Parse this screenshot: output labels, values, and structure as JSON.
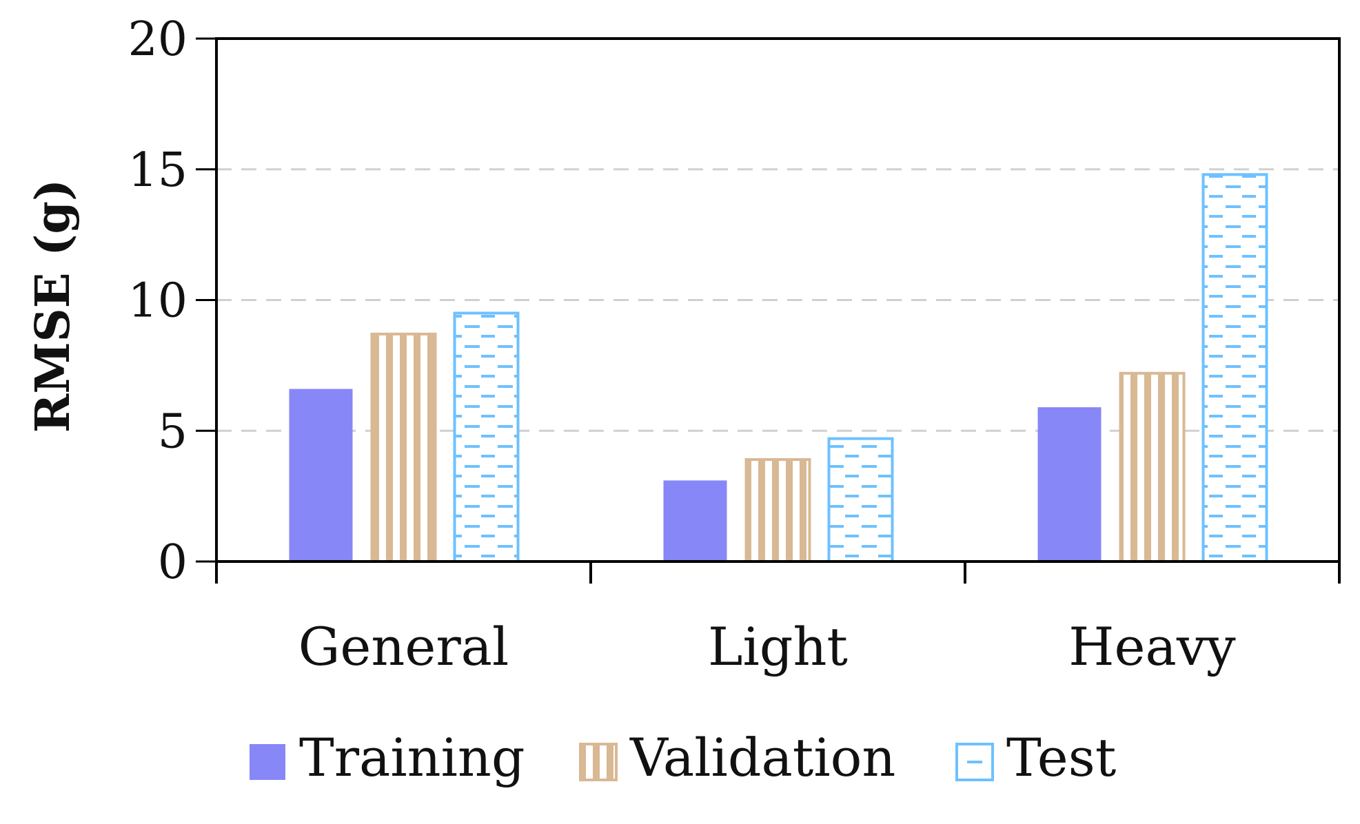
{
  "chart_data": {
    "type": "bar",
    "title": "",
    "xlabel": "",
    "ylabel": "RMSE (g)",
    "categories": [
      "General",
      "Light",
      "Heavy"
    ],
    "series": [
      {
        "name": "Training",
        "values": [
          6.6,
          3.1,
          5.9
        ],
        "color": "#8787f8",
        "pattern": "solid"
      },
      {
        "name": "Validation",
        "values": [
          8.7,
          3.9,
          7.2
        ],
        "color": "#d9b894",
        "pattern": "vertical-stripes"
      },
      {
        "name": "Test",
        "values": [
          9.5,
          4.7,
          14.8
        ],
        "color": "#6ec1ff",
        "pattern": "horizontal-dashes"
      }
    ],
    "ylim": [
      0,
      20
    ],
    "yticks": [
      "0",
      "5",
      "10",
      "15",
      "20"
    ],
    "grid": "horizontal dashed",
    "legend_position": "bottom"
  }
}
